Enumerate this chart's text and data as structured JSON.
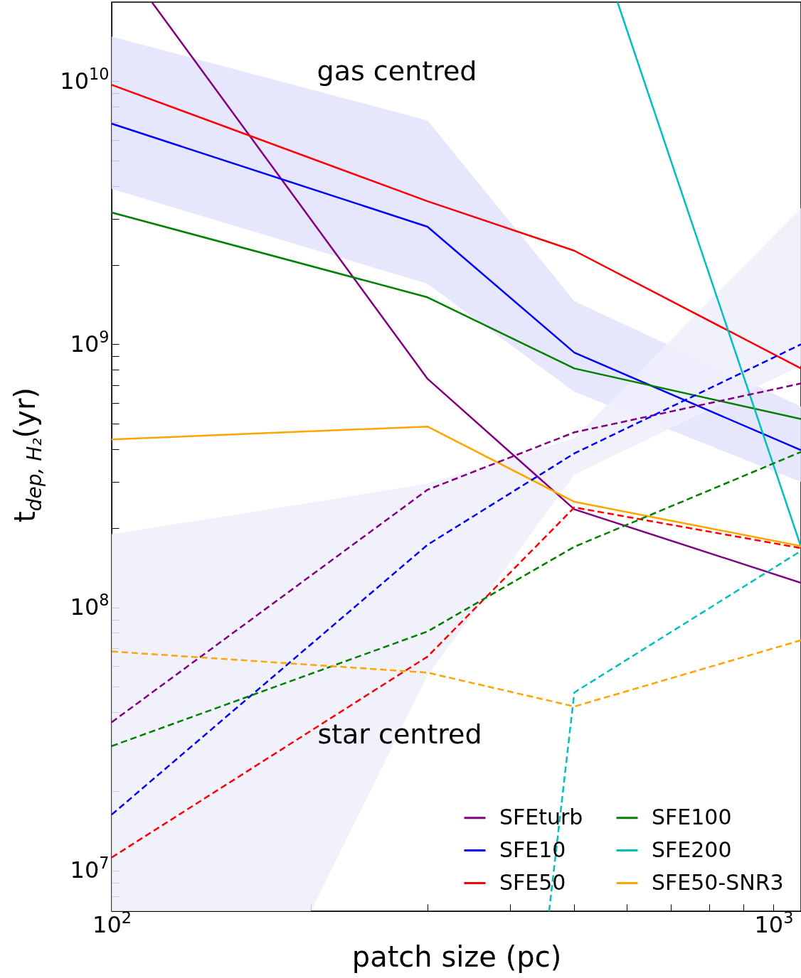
{
  "chart_data": {
    "type": "line",
    "xlabel": "patch size (pc)",
    "ylabel": "t$_{dep, H₂}$(yr)",
    "log": "xy",
    "grid": false,
    "legend": "bottom right",
    "marker": "none",
    "xlim": [
      100,
      1100
    ],
    "ylim": [
      7000000,
      20000000000
    ],
    "xticks": [
      {
        "value": 100,
        "label": "10$^{2}$"
      },
      {
        "value": 200,
        "label": null
      },
      {
        "value": 300,
        "label": null
      },
      {
        "value": 400,
        "label": null
      },
      {
        "value": 500,
        "label": null
      },
      {
        "value": 600,
        "label": null
      },
      {
        "value": 700,
        "label": null
      },
      {
        "value": 800,
        "label": null
      },
      {
        "value": 900,
        "label": null
      },
      {
        "value": 1000,
        "label": "10$^{3}$"
      }
    ],
    "yticks": [
      {
        "value": 8000000,
        "label": null
      },
      {
        "value": 9000000,
        "label": null
      },
      {
        "value": 10000000,
        "label": "10$^{7}$"
      },
      {
        "value": 20000000,
        "label": null
      },
      {
        "value": 30000000,
        "label": null
      },
      {
        "value": 40000000,
        "label": null
      },
      {
        "value": 50000000,
        "label": null
      },
      {
        "value": 60000000,
        "label": null
      },
      {
        "value": 70000000,
        "label": null
      },
      {
        "value": 80000000,
        "label": null
      },
      {
        "value": 90000000,
        "label": null
      },
      {
        "value": 100000000,
        "label": "10$^{8}$"
      },
      {
        "value": 200000000,
        "label": null
      },
      {
        "value": 300000000,
        "label": null
      },
      {
        "value": 400000000,
        "label": null
      },
      {
        "value": 500000000,
        "label": null
      },
      {
        "value": 600000000,
        "label": null
      },
      {
        "value": 700000000,
        "label": null
      },
      {
        "value": 800000000,
        "label": null
      },
      {
        "value": 900000000,
        "label": null
      },
      {
        "value": 1000000000,
        "label": "10$^{9}$"
      },
      {
        "value": 2000000000,
        "label": null
      },
      {
        "value": 3000000000,
        "label": null
      },
      {
        "value": 4000000000,
        "label": null
      },
      {
        "value": 5000000000,
        "label": null
      },
      {
        "value": 6000000000,
        "label": null
      },
      {
        "value": 7000000000,
        "label": null
      },
      {
        "value": 8000000000,
        "label": null
      },
      {
        "value": 9000000000,
        "label": null
      },
      {
        "value": 10000000000,
        "label": "10$^{10}$"
      }
    ],
    "x": [
      100,
      300,
      500,
      1100
    ],
    "series": [
      {
        "type": "area",
        "color": "#e2e2fb",
        "values": [
          null,
          null,
          null,
          null
        ],
        "upper": [
          14800000000,
          7100000000,
          1460000000,
          580000000
        ],
        "lower": [
          3900000000,
          1700000000,
          660000000,
          300000000
        ]
      },
      {
        "type": "area",
        "color": "#efeffc",
        "x": [
          100,
          200,
          300,
          500,
          1100
        ],
        "values": [
          null,
          null,
          null,
          null,
          null
        ],
        "upper": [
          190000000,
          250000000,
          296000000,
          440000000,
          3300000000
        ],
        "lower": [
          7000000,
          7000000,
          55000000,
          320000000,
          830000000
        ]
      },
      {
        "name": "SFEturb",
        "color": "#800080",
        "line_style": "solid",
        "x": [
          115,
          300,
          500,
          1100
        ],
        "values": [
          20000000000,
          740000000,
          236000000,
          124000000
        ]
      },
      {
        "name": "SFE10",
        "color": "#0000ff",
        "line_style": "solid",
        "values": [
          6900000000,
          2800000000,
          930000000,
          396000000
        ]
      },
      {
        "name": "SFE50",
        "color": "#ff0000",
        "line_style": "solid",
        "values": [
          9700000000,
          3500000000,
          2270000000,
          810000000
        ]
      },
      {
        "name": "SFE100",
        "color": "#008000",
        "line_style": "solid",
        "values": [
          3170000000,
          1510000000,
          810000000,
          520000000
        ]
      },
      {
        "name": "SFE200",
        "color": "#00bfbf",
        "line_style": "solid",
        "x": [
          581,
          1100
        ],
        "values": [
          20000000000,
          170000000
        ]
      },
      {
        "name": "SFE50-SNR3",
        "color": "#ffa500",
        "line_style": "solid",
        "values": [
          435000000,
          487000000,
          252000000,
          171000000
        ]
      },
      {
        "color": "#800080",
        "line_style": "dashed",
        "values": [
          36600000,
          280000000,
          463000000,
          710000000
        ]
      },
      {
        "color": "#0000ff",
        "line_style": "dashed",
        "values": [
          16300000,
          173000000,
          385000000,
          1000000000
        ]
      },
      {
        "color": "#ff0000",
        "line_style": "dashed",
        "values": [
          11200000,
          65000000,
          240000000,
          168000000
        ]
      },
      {
        "color": "#008000",
        "line_style": "dashed",
        "values": [
          29700000,
          81000000,
          170000000,
          390000000
        ]
      },
      {
        "color": "#00bfbf",
        "line_style": "dashed",
        "x": [
          458,
          500,
          1100
        ],
        "values": [
          7000000,
          47500000,
          164000000
        ]
      },
      {
        "color": "#ffa500",
        "line_style": "dashed",
        "values": [
          68000000,
          56500000,
          42000000,
          75000000
        ]
      }
    ],
    "annotations": [
      "gas centred",
      "star centred"
    ]
  }
}
